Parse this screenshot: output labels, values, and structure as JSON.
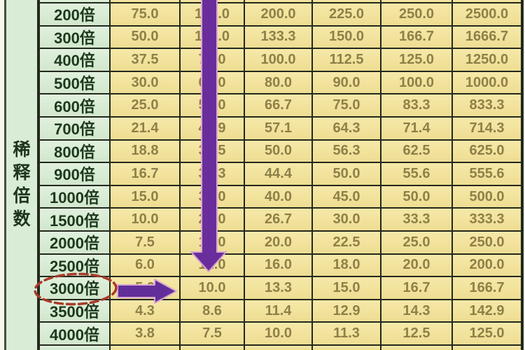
{
  "left_panel": {
    "vertical_label": "稀释倍数",
    "vertical_label_chars": [
      "稀",
      "释",
      "倍",
      "数"
    ]
  },
  "chart_data": {
    "type": "table",
    "row_header": "稀释倍数",
    "row_unit_suffix": "倍",
    "rows": [
      {
        "label": "200倍",
        "values": [
          "75.0",
          "150.0",
          "200.0",
          "225.0",
          "250.0",
          "2500.0"
        ]
      },
      {
        "label": "300倍",
        "values": [
          "50.0",
          "100.0",
          "133.3",
          "150.0",
          "166.7",
          "1666.7"
        ]
      },
      {
        "label": "400倍",
        "values": [
          "37.5",
          "75.0",
          "100.0",
          "112.5",
          "125.0",
          "1250.0"
        ]
      },
      {
        "label": "500倍",
        "values": [
          "30.0",
          "60.0",
          "80.0",
          "90.0",
          "100.0",
          "1000.0"
        ]
      },
      {
        "label": "600倍",
        "values": [
          "25.0",
          "50.0",
          "66.7",
          "75.0",
          "83.3",
          "833.3"
        ]
      },
      {
        "label": "700倍",
        "values": [
          "21.4",
          "42.9",
          "57.1",
          "64.3",
          "71.4",
          "714.3"
        ]
      },
      {
        "label": "800倍",
        "values": [
          "18.8",
          "37.5",
          "50.0",
          "56.3",
          "62.5",
          "625.0"
        ]
      },
      {
        "label": "900倍",
        "values": [
          "16.7",
          "33.3",
          "44.4",
          "50.0",
          "55.6",
          "555.6"
        ]
      },
      {
        "label": "1000倍",
        "values": [
          "15.0",
          "30.0",
          "40.0",
          "45.0",
          "50.0",
          "500.0"
        ]
      },
      {
        "label": "1500倍",
        "values": [
          "10.0",
          "20.0",
          "26.7",
          "30.0",
          "33.3",
          "333.3"
        ]
      },
      {
        "label": "2000倍",
        "values": [
          "7.5",
          "15.0",
          "20.0",
          "22.5",
          "25.0",
          "250.0"
        ]
      },
      {
        "label": "2500倍",
        "values": [
          "6.0",
          "12.0",
          "16.0",
          "18.0",
          "20.0",
          "200.0"
        ]
      },
      {
        "label": "3000倍",
        "values": [
          "5.0",
          "10.0",
          "13.3",
          "15.0",
          "16.7",
          "166.7"
        ]
      },
      {
        "label": "3500倍",
        "values": [
          "4.3",
          "8.6",
          "11.4",
          "12.9",
          "14.3",
          "142.9"
        ]
      },
      {
        "label": "4000倍",
        "values": [
          "3.8",
          "7.5",
          "10.0",
          "11.3",
          "12.5",
          "125.0"
        ]
      }
    ]
  },
  "annotations": {
    "highlighted_row_label": "3000倍",
    "down_arrow_color": "#6a2e9c",
    "right_arrow_color": "#622e99",
    "arrow_halo_color": "#d9a6d2",
    "oval_color": "#a93a28"
  },
  "colors": {
    "data_cell_bg": "#f2e39c",
    "label_cell_bg": "#d8ecd6",
    "grid_line": "#23281d",
    "number_text": "#8d8048",
    "label_text": "#1c381c"
  }
}
